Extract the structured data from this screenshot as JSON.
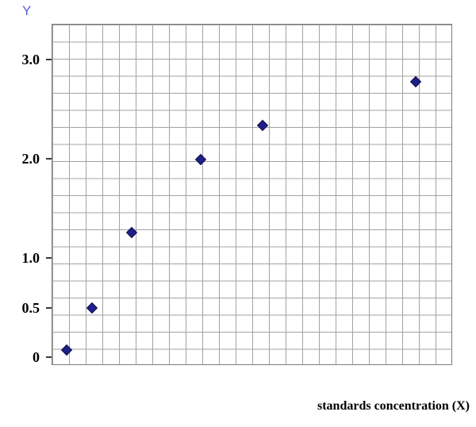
{
  "colors": {
    "y_title": "#5c5cd6",
    "marker": "#1f1f8c",
    "marker_edge": "#10104a",
    "grid": "#a3a3a3",
    "text": "#000000"
  },
  "chart_data": {
    "type": "scatter",
    "title": "",
    "xlabel": "standards concentration (X)",
    "ylabel": "Y",
    "grid": true,
    "legend": false,
    "marker": "diamond",
    "ylim": [
      0,
      3.36
    ],
    "y_ticks": [
      {
        "label": "3.0",
        "value": 3.0
      },
      {
        "label": "2.0",
        "value": 2.0
      },
      {
        "label": "1.0",
        "value": 1.0
      },
      {
        "label": "0.5",
        "value": 0.5
      },
      {
        "label": "0",
        "value": 0.0
      }
    ],
    "x_ticks": [],
    "points": [
      {
        "x_frac": 0.038,
        "y": 0.07
      },
      {
        "x_frac": 0.101,
        "y": 0.5
      },
      {
        "x_frac": 0.2,
        "y": 1.26
      },
      {
        "x_frac": 0.372,
        "y": 1.99
      },
      {
        "x_frac": 0.527,
        "y": 2.34
      },
      {
        "x_frac": 0.909,
        "y": 2.78
      }
    ]
  }
}
